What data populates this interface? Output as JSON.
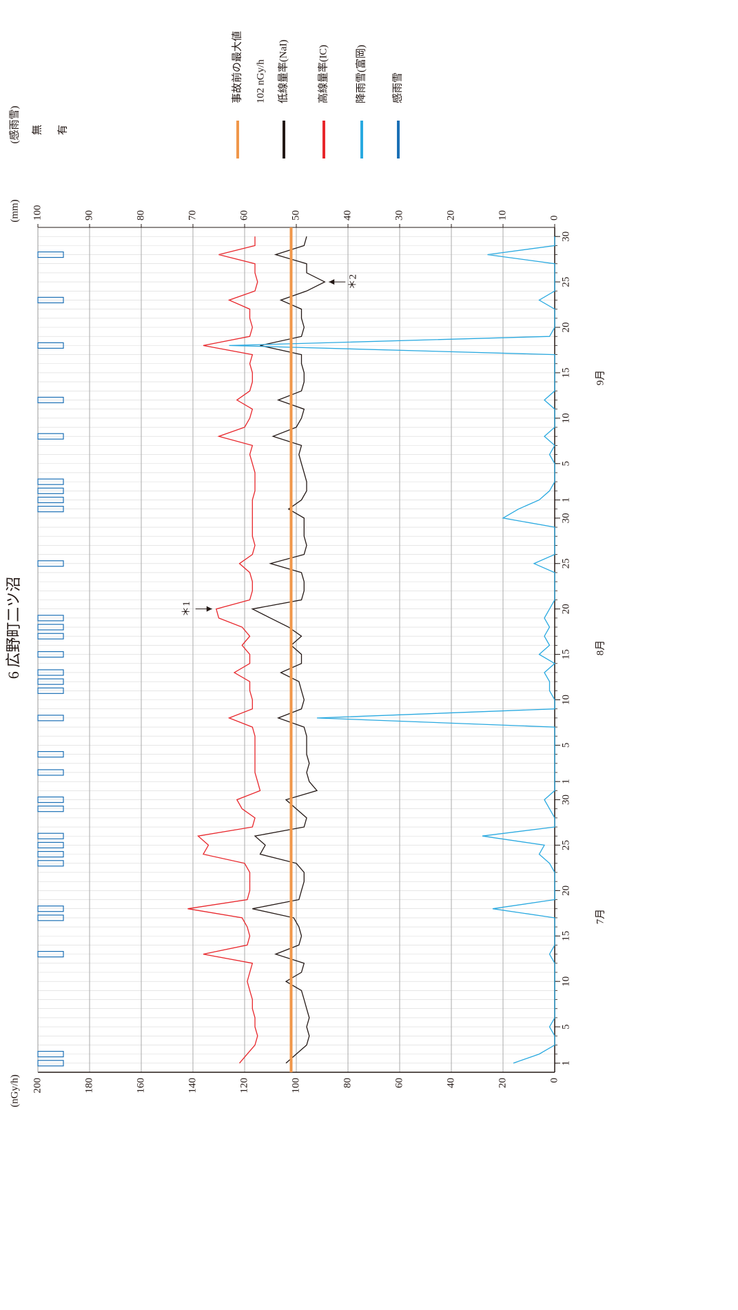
{
  "chart_data": {
    "type": "line",
    "title": "6 広野町二ツ沼",
    "ylabel": "(nGy/h)",
    "y2label": "(mm)",
    "y3label": "(感雨雪)",
    "x": [
      1,
      2,
      3,
      4,
      5,
      6,
      7,
      8,
      9,
      10,
      11,
      12,
      13,
      14,
      15,
      16,
      17,
      18,
      19,
      20,
      21,
      22,
      23,
      24,
      25,
      26,
      27,
      28,
      29,
      30,
      31,
      32,
      33,
      34,
      35,
      36,
      37,
      38,
      39,
      40,
      41,
      42,
      43,
      44,
      45,
      46,
      47,
      48,
      49,
      50,
      51,
      52,
      53,
      54,
      55,
      56,
      57,
      58,
      59,
      60,
      61,
      62,
      63,
      64,
      65,
      66,
      67,
      68,
      69,
      70,
      71,
      72,
      73,
      74,
      75,
      76,
      77,
      78,
      79,
      80,
      81,
      82,
      83,
      84,
      85,
      86,
      87,
      88,
      89,
      90,
      91,
      92
    ],
    "xlim": [
      0,
      93
    ],
    "xticks": [
      1,
      5,
      10,
      15,
      20,
      25,
      30,
      {
        "value": 32,
        "label": "1"
      },
      {
        "value": 36,
        "label": "5"
      },
      {
        "value": 41,
        "label": "10"
      },
      {
        "value": 46,
        "label": "15"
      },
      {
        "value": 51,
        "label": "20"
      },
      {
        "value": 56,
        "label": "25"
      },
      {
        "value": 61,
        "label": "30"
      },
      {
        "value": 63,
        "label": "1"
      },
      {
        "value": 67,
        "label": "5"
      },
      {
        "value": 72,
        "label": "10"
      },
      {
        "value": 77,
        "label": "15"
      },
      {
        "value": 82,
        "label": "20"
      },
      {
        "value": 87,
        "label": "25"
      },
      {
        "value": 92,
        "label": "30"
      }
    ],
    "months": [
      "7月",
      "8月",
      "9月"
    ],
    "ylim": [
      0,
      200
    ],
    "yticks": [
      0,
      20,
      40,
      60,
      80,
      100,
      120,
      140,
      160,
      180,
      200
    ],
    "y2lim": [
      0,
      100
    ],
    "y2ticks": [
      0,
      10,
      20,
      30,
      40,
      50,
      60,
      70,
      80,
      90,
      100
    ],
    "y3lim": [
      0,
      1
    ],
    "y3ticks": [
      {
        "value": 0,
        "label": "無"
      },
      {
        "value": 1,
        "label": "有"
      }
    ],
    "grid": true,
    "reference": {
      "name": "事故前の最大値",
      "value": 102,
      "value_label": "102 nGy/h",
      "color": "#f0974a"
    },
    "series": [
      {
        "name": "低線量率(NaI)",
        "color": "#231815",
        "values": [
          104,
          100,
          96,
          95,
          96,
          95,
          96,
          97,
          98,
          104,
          98,
          97,
          108,
          99,
          98,
          99,
          101,
          117,
          99,
          98,
          97,
          97,
          100,
          114,
          112,
          116,
          97,
          96,
          100,
          104,
          92,
          95,
          96,
          95,
          96,
          96,
          96,
          97,
          107,
          98,
          97,
          98,
          99,
          106,
          98,
          98,
          102,
          98,
          103,
          110,
          117,
          98,
          97,
          97,
          98,
          110,
          97,
          96,
          97,
          97,
          97,
          103,
          98,
          96,
          96,
          97,
          98,
          99,
          98,
          109,
          100,
          98,
          97,
          107,
          98,
          97,
          97,
          98,
          98,
          114,
          98,
          97,
          98,
          98,
          106,
          96,
          89,
          96,
          96,
          108,
          97,
          96
        ]
      },
      {
        "name": "高線量率(IC)",
        "color": "#e8262b",
        "values": [
          122,
          119,
          116,
          115,
          116,
          116,
          117,
          117,
          118,
          119,
          118,
          117,
          136,
          119,
          118,
          119,
          121,
          142,
          119,
          118,
          118,
          118,
          120,
          136,
          134,
          138,
          117,
          116,
          121,
          123,
          114,
          115,
          116,
          116,
          116,
          116,
          116,
          117,
          126,
          117,
          117,
          118,
          118,
          124,
          118,
          118,
          121,
          118,
          121,
          130,
          131,
          118,
          117,
          117,
          118,
          122,
          117,
          116,
          117,
          117,
          117,
          117,
          117,
          116,
          116,
          116,
          117,
          118,
          117,
          130,
          120,
          118,
          117,
          123,
          118,
          117,
          117,
          118,
          117,
          136,
          118,
          117,
          118,
          118,
          126,
          116,
          115,
          116,
          116,
          130,
          116,
          116
        ]
      },
      {
        "name": "降雨雪(富岡)",
        "color": "#29a9e0",
        "axis": "y2",
        "values": [
          8,
          3,
          0,
          0,
          1,
          0,
          0,
          0,
          0,
          0,
          0,
          0,
          1,
          0,
          0,
          0,
          0,
          12,
          0,
          0,
          0,
          0,
          1,
          3,
          2,
          14,
          0,
          0,
          1,
          2,
          0,
          0,
          0,
          0,
          0,
          0,
          0,
          0,
          46,
          0,
          0,
          1,
          1,
          2,
          0,
          3,
          1,
          2,
          1,
          2,
          1,
          0,
          0,
          0,
          0,
          4,
          0,
          0,
          0,
          0,
          10,
          7,
          3,
          1,
          0,
          0,
          0,
          1,
          0,
          2,
          0,
          0,
          0,
          2,
          0,
          0,
          0,
          0,
          0,
          63,
          1,
          0,
          0,
          0,
          3,
          0,
          0,
          0,
          0,
          13,
          0,
          0
        ]
      },
      {
        "name": "感雨雪",
        "color": "#1a6fb5",
        "axis": "y3",
        "values": [
          1,
          1,
          0,
          0,
          0,
          0,
          0,
          0,
          0,
          0,
          0,
          0,
          1,
          0,
          0,
          0,
          1,
          1,
          0,
          0,
          0,
          0,
          1,
          1,
          1,
          1,
          0,
          0,
          1,
          1,
          0,
          0,
          1,
          0,
          1,
          0,
          0,
          0,
          1,
          0,
          0,
          1,
          1,
          1,
          0,
          1,
          0,
          1,
          1,
          1,
          0,
          0,
          0,
          0,
          0,
          1,
          0,
          0,
          0,
          0,
          0,
          1,
          1,
          1,
          1,
          0,
          0,
          0,
          0,
          1,
          0,
          0,
          0,
          1,
          0,
          0,
          0,
          0,
          0,
          1,
          0,
          0,
          0,
          0,
          1,
          0,
          0,
          0,
          0,
          1,
          0,
          0
        ]
      }
    ],
    "annotations": [
      {
        "text": "＊1",
        "x": 51,
        "y": 131
      },
      {
        "text": "＊2",
        "x": 87,
        "y": 89
      }
    ]
  }
}
